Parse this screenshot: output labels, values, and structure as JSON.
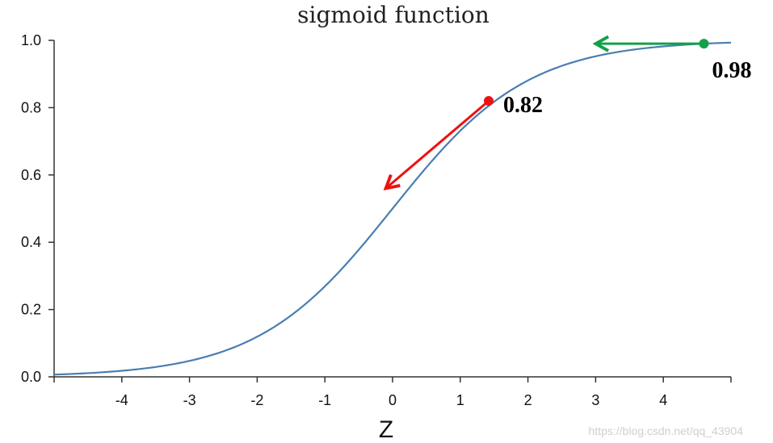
{
  "chart_data": {
    "type": "line",
    "title": "sigmoid function",
    "xlabel": "Z",
    "ylabel": "",
    "xlim": [
      -5,
      5
    ],
    "ylim": [
      0,
      1
    ],
    "x_ticks": [
      -4,
      -3,
      -2,
      -1,
      0,
      1,
      2,
      3,
      4
    ],
    "x_tick_labels": [
      "-4",
      "-3",
      "-2",
      "-1",
      "0",
      "1",
      "2",
      "3",
      "4"
    ],
    "y_ticks": [
      0,
      0.2,
      0.4,
      0.6,
      0.8,
      1.0
    ],
    "y_tick_labels": [
      "0.0",
      "0.2",
      "0.4",
      "0.6",
      "0.8",
      "1.0"
    ],
    "grid": false,
    "series": [
      {
        "function": "sigmoid",
        "color": "#4a7eb0",
        "x": [
          -5,
          -4,
          -3,
          -2,
          -1,
          0,
          1,
          2,
          3,
          4,
          5
        ],
        "y": [
          0.0067,
          0.018,
          0.047,
          0.119,
          0.269,
          0.5,
          0.731,
          0.881,
          0.953,
          0.982,
          0.9933
        ]
      }
    ],
    "annotations": [
      {
        "label": "0.82",
        "x": 1.42,
        "y": 0.82,
        "color": "#ee1111",
        "arrow_to": [
          -0.1,
          0.56
        ]
      },
      {
        "label": "0.98",
        "x": 4.6,
        "y": 0.99,
        "color": "#14a04a",
        "arrow_to": [
          3.0,
          0.99
        ]
      }
    ]
  },
  "watermark": "https://blog.csdn.net/qq_43904"
}
